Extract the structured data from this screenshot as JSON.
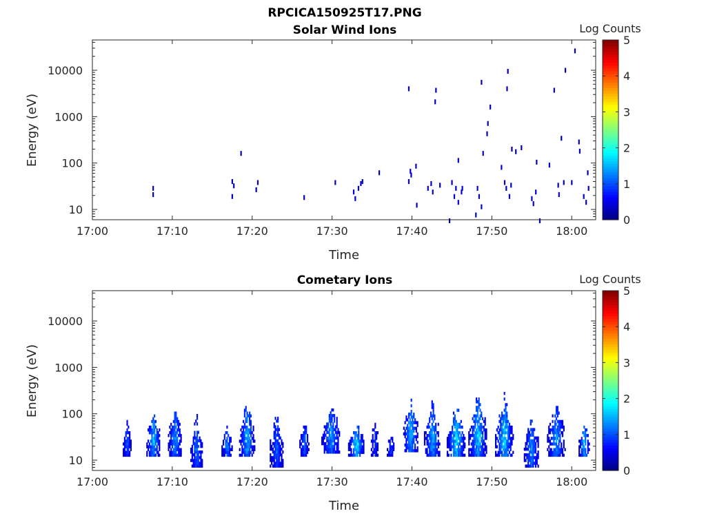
{
  "figure_title": "RPCICA150925T17.PNG",
  "colorbar": {
    "label": "Log Counts",
    "ticks": [
      "0",
      "1",
      "2",
      "3",
      "4",
      "5"
    ],
    "range": [
      0,
      5
    ],
    "colormap": "jet"
  },
  "chart_data": [
    {
      "type": "heatmap",
      "title": "Solar Wind Ions",
      "xlabel": "Time",
      "ylabel": "Energy (eV)",
      "xticks": [
        "17:00",
        "17:10",
        "17:20",
        "17:30",
        "17:40",
        "17:50",
        "18:00"
      ],
      "yticks": [
        "10",
        "100",
        "1000",
        "10000"
      ],
      "xlim_minutes_after_1700": [
        0,
        63
      ],
      "ylim": [
        6,
        45000
      ],
      "yscale": "log",
      "points": [
        [
          7.6,
          22,
          0.3
        ],
        [
          7.6,
          30,
          0.3
        ],
        [
          17.5,
          20,
          0.3
        ],
        [
          17.5,
          42,
          0.3
        ],
        [
          17.7,
          34,
          0.3
        ],
        [
          18.6,
          170,
          0.3
        ],
        [
          20.5,
          28,
          0.3
        ],
        [
          20.7,
          40,
          0.3
        ],
        [
          26.5,
          19,
          0.3
        ],
        [
          30.4,
          40,
          0.3
        ],
        [
          32.7,
          25,
          0.4
        ],
        [
          32.9,
          18,
          0.3
        ],
        [
          33.3,
          30,
          0.4
        ],
        [
          33.6,
          38,
          0.4
        ],
        [
          33.8,
          42,
          0.4
        ],
        [
          35.9,
          65,
          0.3
        ],
        [
          39.6,
          4200,
          0.3
        ],
        [
          39.6,
          42,
          0.3
        ],
        [
          39.8,
          70,
          0.4
        ],
        [
          39.9,
          58,
          0.4
        ],
        [
          40.5,
          90,
          0.3
        ],
        [
          40.6,
          13,
          0.3
        ],
        [
          42.0,
          30,
          0.3
        ],
        [
          42.4,
          38,
          0.4
        ],
        [
          42.6,
          25,
          0.3
        ],
        [
          42.9,
          2200,
          0.3
        ],
        [
          43.0,
          3900,
          0.3
        ],
        [
          43.5,
          35,
          0.3
        ],
        [
          44.7,
          6,
          0.3
        ],
        [
          45.0,
          40,
          0.4
        ],
        [
          45.3,
          20,
          0.4
        ],
        [
          45.5,
          30,
          0.4
        ],
        [
          45.8,
          15,
          0.4
        ],
        [
          45.8,
          120,
          0.3
        ],
        [
          46.2,
          25,
          0.4
        ],
        [
          46.3,
          30,
          0.4
        ],
        [
          48.0,
          8,
          0.4
        ],
        [
          48.2,
          30,
          0.4
        ],
        [
          48.4,
          20,
          0.4
        ],
        [
          48.7,
          12,
          0.4
        ],
        [
          48.7,
          5800,
          0.3
        ],
        [
          48.9,
          170,
          0.3
        ],
        [
          49.4,
          450,
          0.3
        ],
        [
          49.5,
          750,
          0.3
        ],
        [
          49.8,
          1700,
          0.3
        ],
        [
          51.2,
          85,
          0.3
        ],
        [
          51.6,
          40,
          0.4
        ],
        [
          51.8,
          30,
          0.4
        ],
        [
          51.9,
          4200,
          0.3
        ],
        [
          52.0,
          10000,
          0.3
        ],
        [
          52.2,
          20,
          0.4
        ],
        [
          52.4,
          35,
          0.4
        ],
        [
          52.5,
          210,
          0.3
        ],
        [
          53.0,
          185,
          0.3
        ],
        [
          53.7,
          225,
          0.3
        ],
        [
          55.0,
          18,
          0.4
        ],
        [
          55.2,
          14,
          0.4
        ],
        [
          55.5,
          25,
          0.4
        ],
        [
          55.6,
          110,
          0.3
        ],
        [
          56.0,
          6,
          0.3
        ],
        [
          57.2,
          95,
          0.3
        ],
        [
          57.8,
          3900,
          0.3
        ],
        [
          58.3,
          35,
          0.4
        ],
        [
          58.4,
          22,
          0.4
        ],
        [
          58.7,
          360,
          0.3
        ],
        [
          59.0,
          40,
          0.3
        ],
        [
          59.2,
          10500,
          0.3
        ],
        [
          60.0,
          40,
          0.3
        ],
        [
          60.4,
          27500,
          0.3
        ],
        [
          60.9,
          300,
          0.3
        ],
        [
          61.0,
          190,
          0.3
        ],
        [
          61.5,
          20,
          0.4
        ],
        [
          61.8,
          15,
          0.4
        ],
        [
          62.0,
          65,
          0.3
        ],
        [
          62.1,
          30,
          0.4
        ]
      ]
    },
    {
      "type": "heatmap",
      "title": "Cometary Ions",
      "xlabel": "Time",
      "ylabel": "Energy (eV)",
      "xticks": [
        "17:00",
        "17:10",
        "17:20",
        "17:30",
        "17:40",
        "17:50",
        "18:00"
      ],
      "yticks": [
        "10",
        "100",
        "1000",
        "10000"
      ],
      "xlim_minutes_after_1700": [
        0,
        63
      ],
      "ylim": [
        6,
        45000
      ],
      "yscale": "log",
      "bursts": [
        {
          "t": 4.3,
          "w": 1.0,
          "emin": 12,
          "emax": 85,
          "peak": 0.9,
          "seed": 11
        },
        {
          "t": 7.6,
          "w": 1.7,
          "emin": 12,
          "emax": 160,
          "peak": 1.5,
          "seed": 12
        },
        {
          "t": 10.3,
          "w": 1.7,
          "emin": 12,
          "emax": 200,
          "peak": 1.3,
          "seed": 13
        },
        {
          "t": 13.0,
          "w": 1.5,
          "emin": 7,
          "emax": 110,
          "peak": 1.1,
          "seed": 14
        },
        {
          "t": 16.8,
          "w": 1.3,
          "emin": 12,
          "emax": 60,
          "peak": 1.2,
          "seed": 15
        },
        {
          "t": 19.3,
          "w": 1.9,
          "emin": 12,
          "emax": 230,
          "peak": 1.5,
          "seed": 16
        },
        {
          "t": 23.0,
          "w": 1.6,
          "emin": 7,
          "emax": 160,
          "peak": 1.0,
          "seed": 17
        },
        {
          "t": 26.5,
          "w": 1.2,
          "emin": 12,
          "emax": 95,
          "peak": 1.0,
          "seed": 18
        },
        {
          "t": 29.8,
          "w": 2.3,
          "emin": 14,
          "emax": 180,
          "peak": 1.3,
          "seed": 19
        },
        {
          "t": 33.0,
          "w": 2.0,
          "emin": 12,
          "emax": 70,
          "peak": 1.8,
          "seed": 20
        },
        {
          "t": 35.3,
          "w": 0.9,
          "emin": 12,
          "emax": 90,
          "peak": 0.8,
          "seed": 21
        },
        {
          "t": 37.3,
          "w": 0.9,
          "emin": 12,
          "emax": 45,
          "peak": 0.8,
          "seed": 22
        },
        {
          "t": 39.8,
          "w": 1.8,
          "emin": 15,
          "emax": 260,
          "peak": 1.5,
          "seed": 23
        },
        {
          "t": 42.5,
          "w": 2.0,
          "emin": 12,
          "emax": 220,
          "peak": 1.4,
          "seed": 24
        },
        {
          "t": 45.5,
          "w": 2.3,
          "emin": 12,
          "emax": 170,
          "peak": 1.8,
          "seed": 25
        },
        {
          "t": 48.2,
          "w": 2.3,
          "emin": 12,
          "emax": 320,
          "peak": 1.6,
          "seed": 26
        },
        {
          "t": 51.5,
          "w": 2.2,
          "emin": 12,
          "emax": 270,
          "peak": 1.7,
          "seed": 27
        },
        {
          "t": 54.9,
          "w": 1.8,
          "emin": 7,
          "emax": 120,
          "peak": 1.3,
          "seed": 28
        },
        {
          "t": 58.0,
          "w": 2.2,
          "emin": 12,
          "emax": 200,
          "peak": 1.3,
          "seed": 29
        },
        {
          "t": 61.5,
          "w": 1.3,
          "emin": 12,
          "emax": 80,
          "peak": 1.6,
          "seed": 30
        }
      ]
    }
  ]
}
